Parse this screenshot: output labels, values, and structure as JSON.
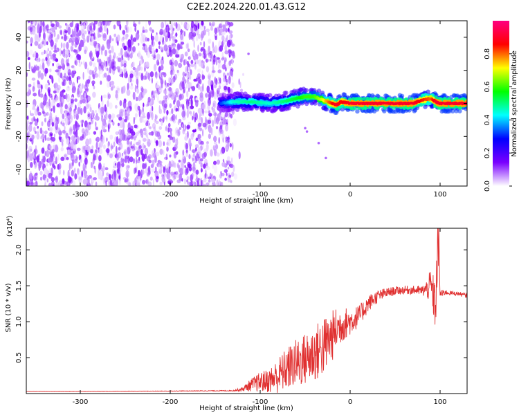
{
  "title": "C2E2.2024.220.01.43.G12",
  "chart_data": [
    {
      "type": "heatmap",
      "xlabel": "Height of straight line (km)",
      "ylabel": "Frequency (Hz)",
      "xlim": [
        -360,
        130
      ],
      "ylim": [
        -50,
        50
      ],
      "xticks": [
        -300,
        -200,
        -100,
        0,
        100
      ],
      "yticks": [
        -40,
        -20,
        0,
        20,
        40
      ],
      "colorbar": {
        "label": "Normalized spectral amplitude",
        "range": [
          0,
          1
        ],
        "ticks": [
          "0.0",
          "0.2",
          "0.4",
          "0.6",
          "0.8"
        ],
        "colors": [
          "#ffffff",
          "#7a00ff",
          "#0000ff",
          "#00ffff",
          "#00ff00",
          "#ffff00",
          "#ff0000",
          "#ff0080"
        ]
      },
      "noise_region": {
        "x_from": -360,
        "x_to": -130,
        "amplitude": 0.15
      },
      "signal_ridge": {
        "x": [
          -145,
          -130,
          -110,
          -90,
          -75,
          -60,
          -50,
          -40,
          -30,
          -20,
          -15,
          -10,
          0,
          20,
          50,
          70,
          80,
          90,
          95,
          100,
          130
        ],
        "y": [
          0,
          1,
          1,
          0,
          1,
          3,
          4,
          4,
          2,
          0,
          -1,
          1,
          0,
          0,
          0,
          0,
          2,
          3,
          1,
          0,
          0
        ],
        "amplitude": [
          0.3,
          0.45,
          0.5,
          0.45,
          0.5,
          0.55,
          0.6,
          0.6,
          0.7,
          0.85,
          0.9,
          0.85,
          0.9,
          0.9,
          0.9,
          0.9,
          0.85,
          0.8,
          0.9,
          0.9,
          0.9
        ]
      },
      "grid": false
    },
    {
      "type": "line",
      "xlabel": "Height of straight line (km)",
      "ylabel": "SNR (10 * v/v)",
      "y_multiplier": "(x10⁴)",
      "xlim": [
        -360,
        130
      ],
      "ylim": [
        0,
        23000
      ],
      "xticks": [
        -300,
        -200,
        -100,
        0,
        100
      ],
      "yticks": [
        5000,
        10000,
        15000,
        20000
      ],
      "ytick_labels": [
        "0.5",
        "1.0",
        "1.5",
        "2.0"
      ],
      "color": "#e03030",
      "series": [
        {
          "x": [
            -360,
            -300,
            -200,
            -130,
            -120,
            -110,
            -100,
            -90,
            -80,
            -70,
            -60,
            -50,
            -40,
            -30,
            -20,
            -15,
            -10,
            -5,
            0,
            10,
            20,
            30,
            40,
            50,
            60,
            70,
            80,
            85,
            90,
            95,
            98,
            100,
            102,
            105,
            110,
            120,
            130
          ],
          "y": [
            300,
            300,
            350,
            400,
            600,
            1200,
            1600,
            1800,
            2500,
            3500,
            4200,
            4800,
            5500,
            6500,
            8000,
            9000,
            9500,
            9800,
            10000,
            10800,
            12500,
            13500,
            14000,
            14300,
            14400,
            14400,
            14300,
            14500,
            15000,
            12000,
            22000,
            14000,
            13800,
            14100,
            14000,
            13900,
            13600
          ],
          "noise": [
            20,
            20,
            30,
            60,
            300,
            900,
            1400,
            1700,
            2500,
            3000,
            3400,
            3700,
            4000,
            4200,
            3600,
            3000,
            2600,
            2200,
            1900,
            1500,
            1200,
            900,
            700,
            600,
            600,
            600,
            700,
            1300,
            2500,
            3500,
            4500,
            1200,
            600,
            400,
            300,
            300,
            300
          ]
        }
      ],
      "grid": false
    }
  ]
}
